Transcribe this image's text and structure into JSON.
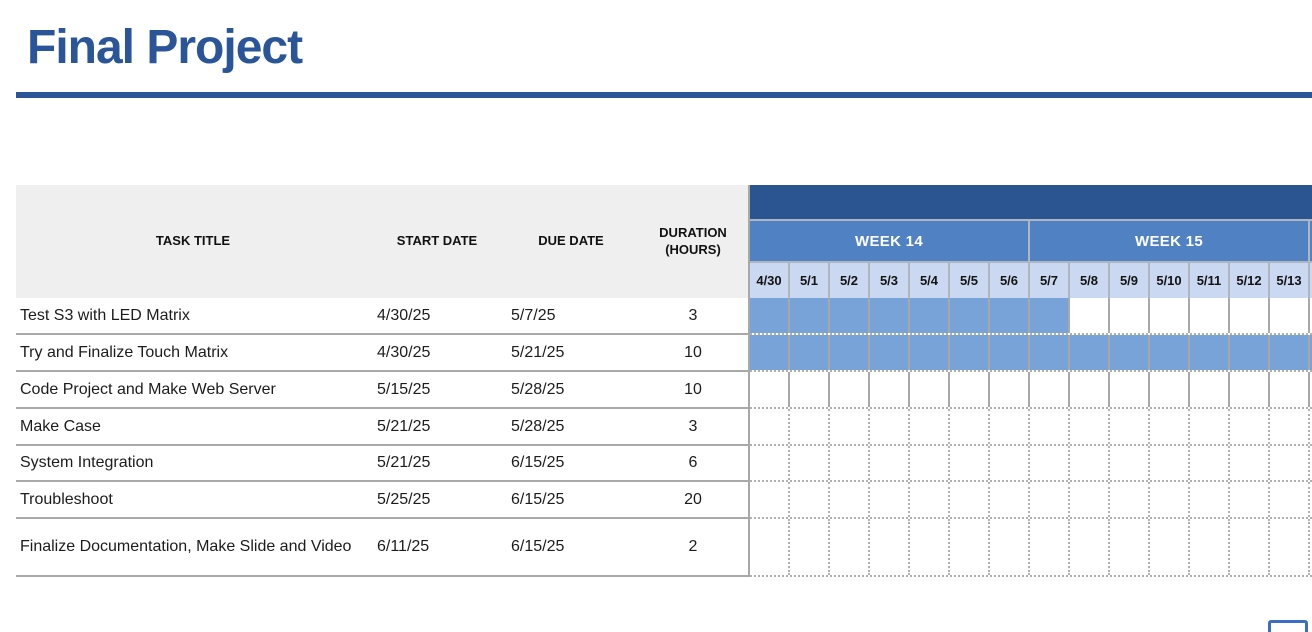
{
  "title": "Final Project",
  "table": {
    "columns": [
      "TASK TITLE",
      "START DATE",
      "DUE DATE",
      "DURATION (HOURS)"
    ],
    "tasks": [
      {
        "title": "Test S3 with LED Matrix",
        "start": "4/30/25",
        "due": "5/7/25",
        "duration": "3",
        "bar": {
          "from": 0,
          "to": 7,
          "extends_beyond_view": false
        }
      },
      {
        "title": "Try and Finalize Touch Matrix",
        "start": "4/30/25",
        "due": "5/21/25",
        "duration": "10",
        "bar": {
          "from": 0,
          "to": 13,
          "extends_beyond_view": true
        }
      },
      {
        "title": "Code Project and Make Web Server",
        "start": "5/15/25",
        "due": "5/28/25",
        "duration": "10",
        "bar": null
      },
      {
        "title": "Make Case",
        "start": "5/21/25",
        "due": "5/28/25",
        "duration": "3",
        "bar": null
      },
      {
        "title": "System Integration",
        "start": "5/21/25",
        "due": "6/15/25",
        "duration": "6",
        "bar": null
      },
      {
        "title": "Troubleshoot",
        "start": "5/25/25",
        "due": "6/15/25",
        "duration": "20",
        "bar": null
      },
      {
        "title": "Finalize Documentation, Make Slide and Video",
        "start": "6/11/25",
        "due": "6/15/25",
        "duration": "2",
        "bar": null
      }
    ]
  },
  "gantt": {
    "weeks": [
      {
        "label": "WEEK 14"
      },
      {
        "label": "WEEK 15"
      }
    ],
    "days": [
      "4/30",
      "5/1",
      "5/2",
      "5/3",
      "5/4",
      "5/5",
      "5/6",
      "5/7",
      "5/8",
      "5/9",
      "5/10",
      "5/11",
      "5/12",
      "5/13"
    ]
  },
  "colors": {
    "title_blue": "#2a5699",
    "band_dark_blue": "#2b5591",
    "week_band_blue": "#4f81c3",
    "day_band_blue": "#cbd8f1",
    "bar_blue": "#78a3d9",
    "header_gray": "#efefef",
    "corner_button_border": "#3b6cc7"
  }
}
